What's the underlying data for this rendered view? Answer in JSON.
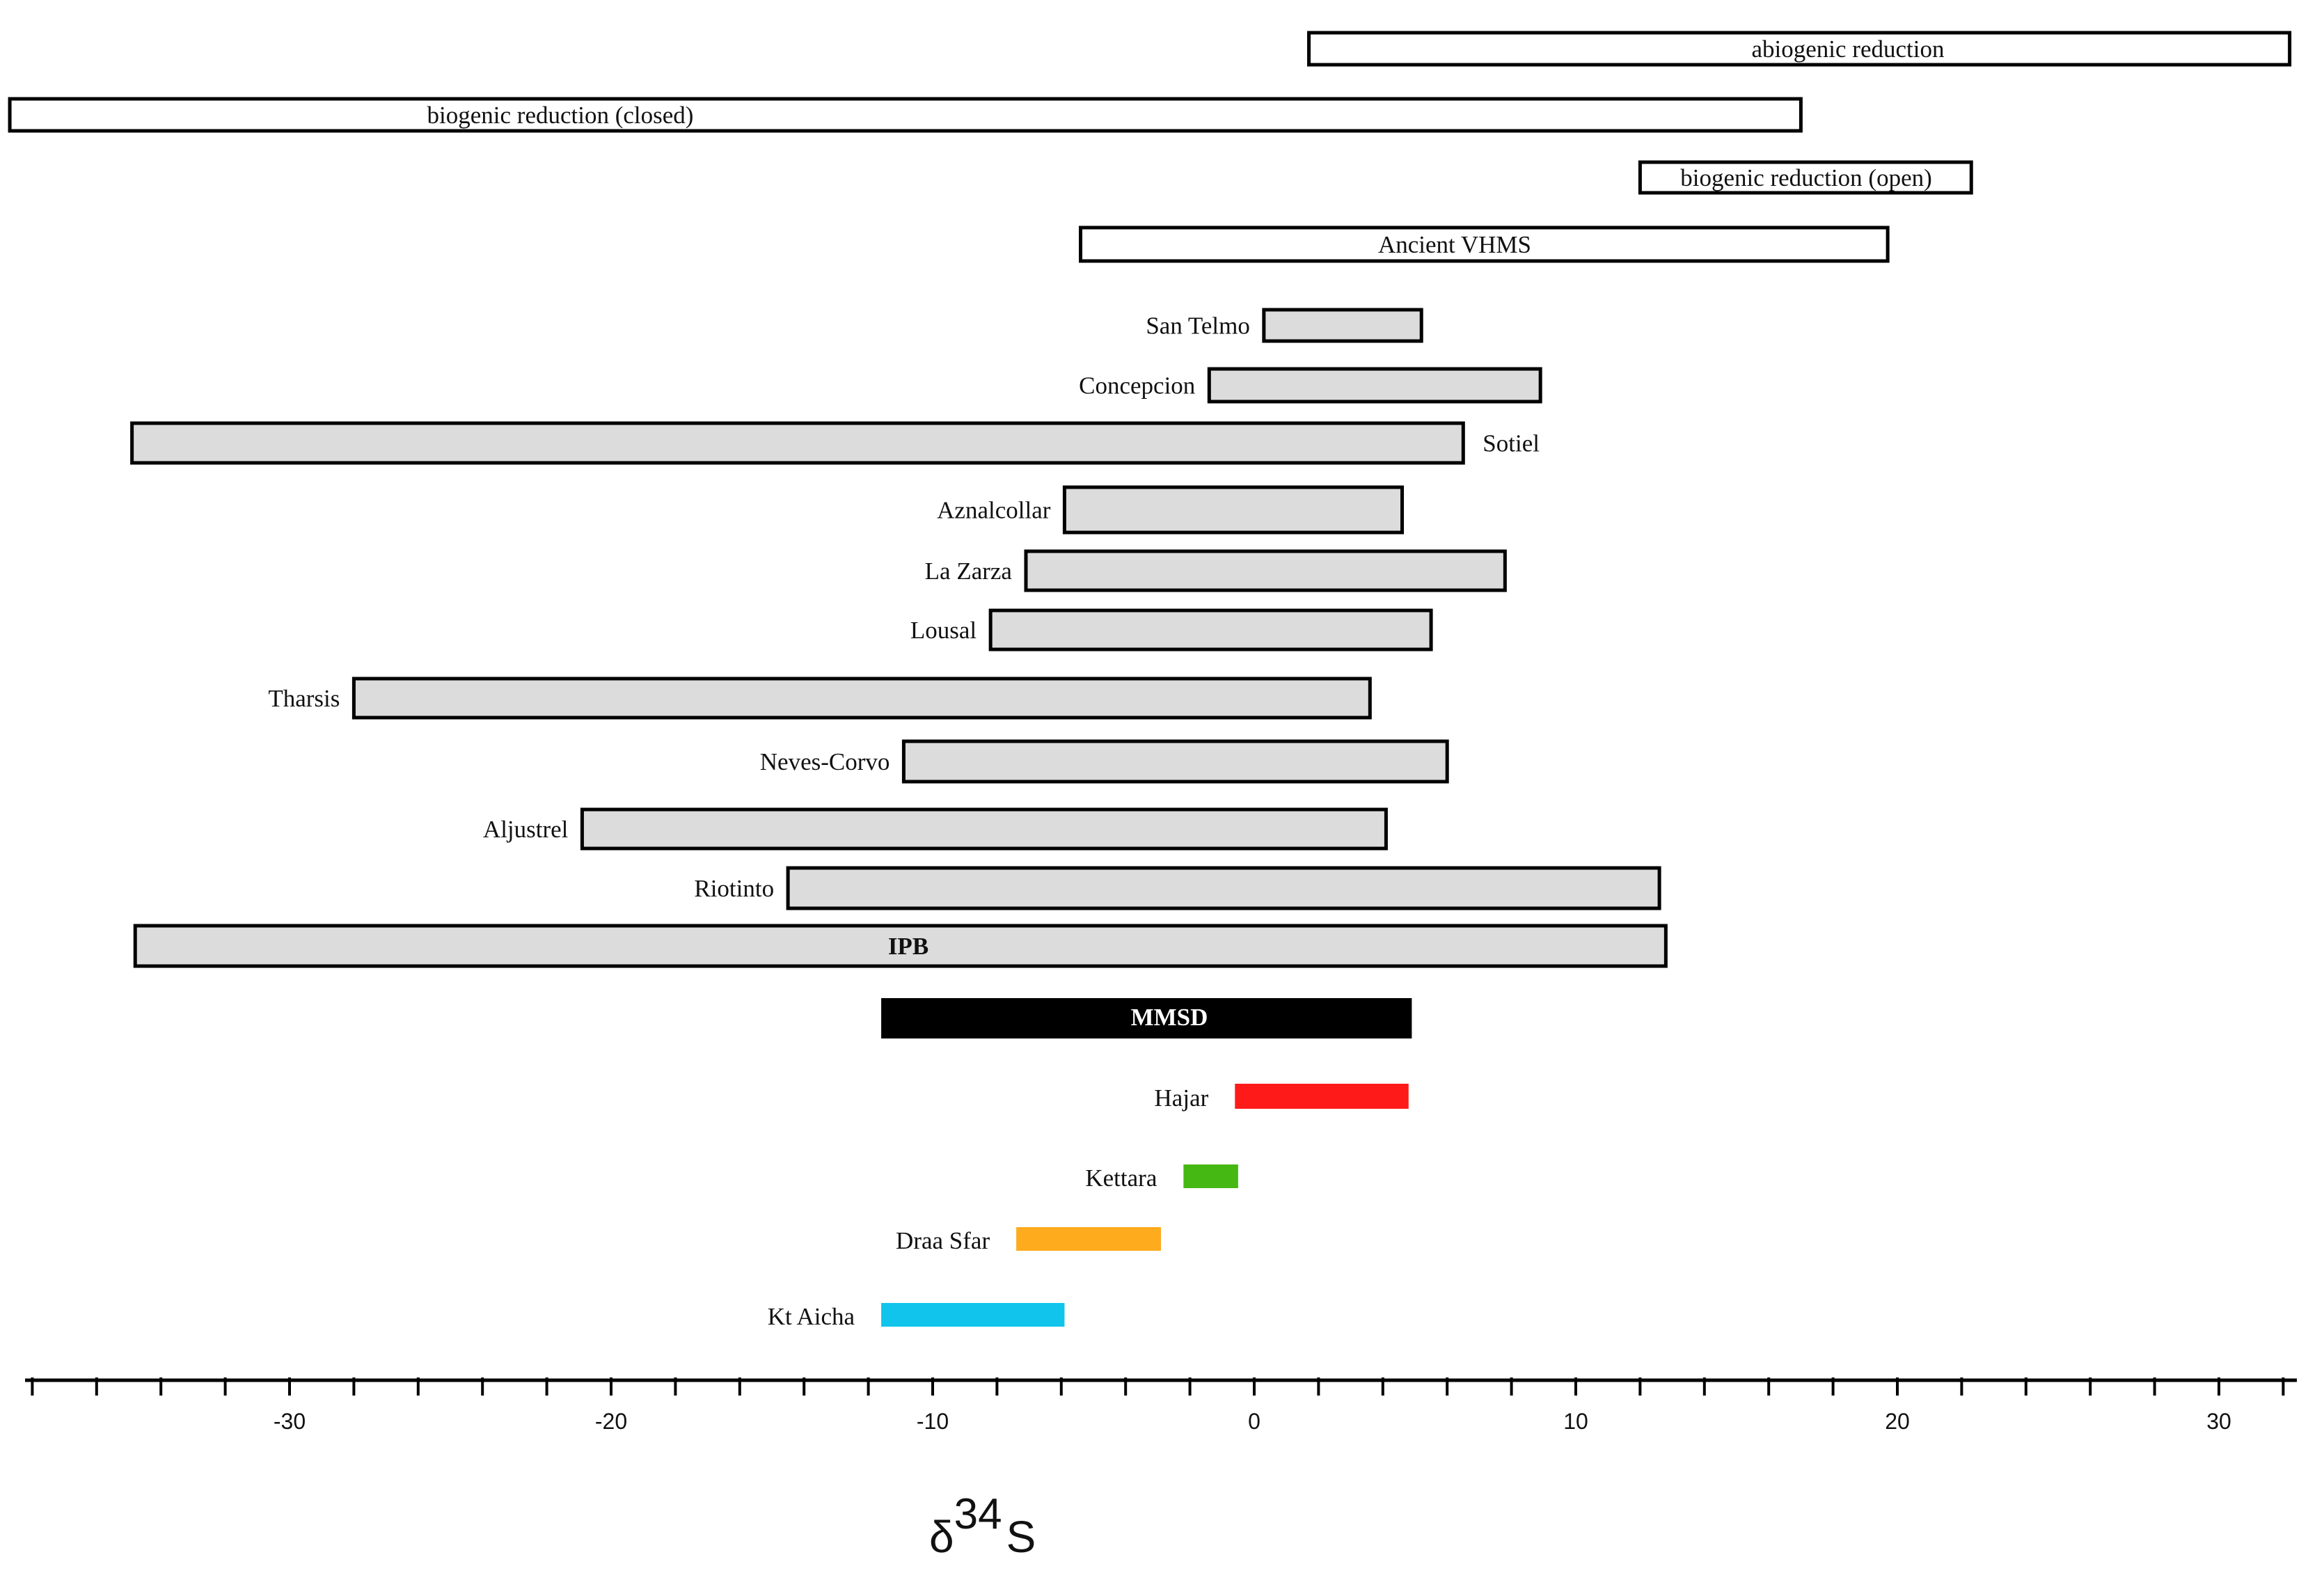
{
  "chart_data": {
    "type": "range-bar",
    "title": "",
    "xlabel_main": "δ",
    "xlabel_sup": "34",
    "xlabel_tail": "S",
    "ylabel": "",
    "xlim": [
      -38.7,
      32.2
    ],
    "x_ticks": [
      -30,
      -20,
      -10,
      0,
      10,
      20,
      30
    ],
    "x_tick_labels": [
      "-30",
      "-20",
      "-10",
      "0",
      "10",
      "20",
      "30"
    ],
    "minor_tick_step": 2,
    "grid": false,
    "colors": {
      "outline": "#000000",
      "fill_open": "#ffffff",
      "fill_grey": "#dcdcdc",
      "mmsd": "#000000",
      "hajar": "#ff1a1a",
      "kettara": "#46b814",
      "draa_sfar": "#ffab1e",
      "kt_aicha": "#10c4ec"
    },
    "reference_ranges": [
      {
        "name": "abiogenic reduction",
        "min": 1.7,
        "max": 32.2
      },
      {
        "name": "biogenic reduction (closed)",
        "min": -38.7,
        "max": 17.0
      },
      {
        "name": "biogenic reduction (open)",
        "min": 12.0,
        "max": 22.3
      },
      {
        "name": "Ancient VHMS",
        "min": -5.4,
        "max": 19.7
      }
    ],
    "deposits": [
      {
        "name": "San Telmo",
        "min": 0.3,
        "max": 5.2
      },
      {
        "name": "Concepcion",
        "min": -1.4,
        "max": 8.9
      },
      {
        "name": "Sotiel",
        "min": -34.9,
        "max": 6.5
      },
      {
        "name": "Aznalcollar",
        "min": -5.9,
        "max": 4.6
      },
      {
        "name": "La Zarza",
        "min": -7.1,
        "max": 7.8
      },
      {
        "name": "Lousal",
        "min": -8.2,
        "max": 5.5
      },
      {
        "name": "Tharsis",
        "min": -28.0,
        "max": 3.6
      },
      {
        "name": "Neves-Corvo",
        "min": -10.9,
        "max": 6.0
      },
      {
        "name": "Aljustrel",
        "min": -20.9,
        "max": 4.1
      },
      {
        "name": "Riotinto",
        "min": -14.5,
        "max": 12.6
      },
      {
        "name": "IPB",
        "min": -34.8,
        "max": 12.8
      }
    ],
    "mmsd": {
      "name": "MMSD",
      "min": -11.6,
      "max": 4.9
    },
    "moroccan_deposits": [
      {
        "name": "Hajar",
        "min": -0.6,
        "max": 4.8
      },
      {
        "name": "Kettara",
        "min": -2.2,
        "max": -0.5
      },
      {
        "name": "Draa Sfar",
        "min": -7.4,
        "max": -2.9
      },
      {
        "name": "Kt Aicha",
        "min": -11.6,
        "max": -5.9
      }
    ]
  }
}
